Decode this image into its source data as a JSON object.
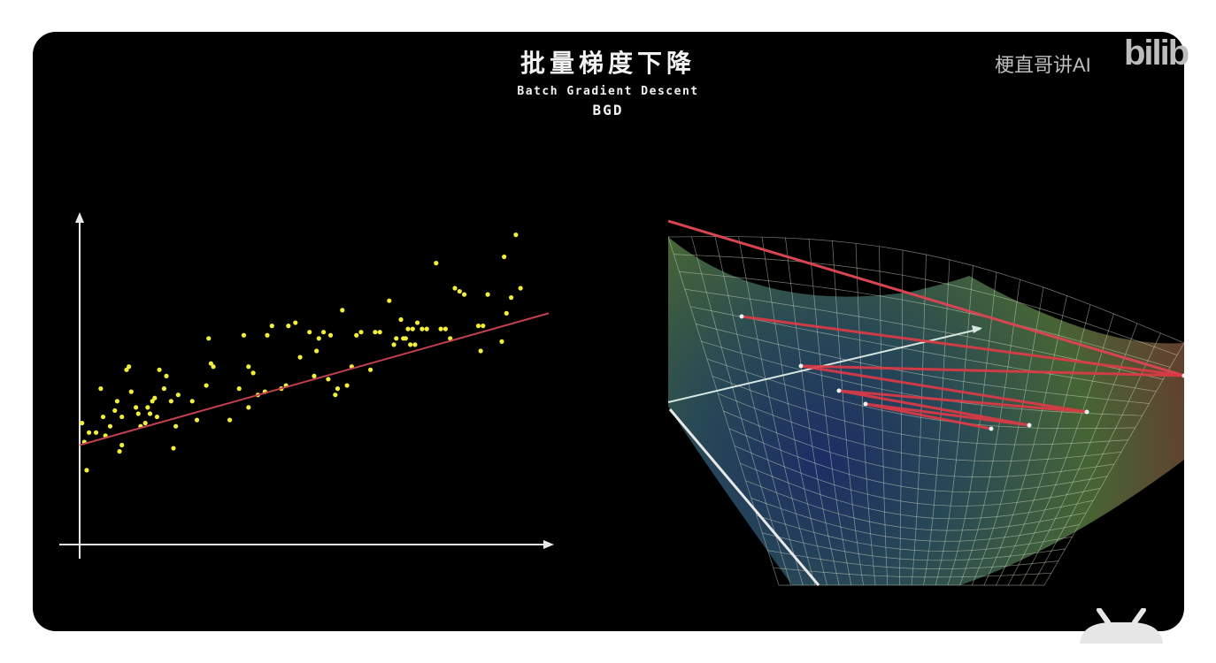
{
  "video": {
    "title": "批量梯度下降",
    "subtitle": "Batch Gradient Descent",
    "abbreviation": "BGD"
  },
  "watermark": {
    "channel": "梗直哥讲AI",
    "logo": "bilib"
  },
  "colors": {
    "background": "#000000",
    "points": "#f2ee3a",
    "fit_line": "#c2404f",
    "axes": "#e8e8e8",
    "descent_path": "#e03a45",
    "surface_grid": "#d8e0c8"
  },
  "icons": {
    "mascot": "bilibili-tv-mascot-icon"
  },
  "chart_data": {
    "type": "scatter",
    "title": "",
    "xlabel": "",
    "ylabel": "",
    "xlim": [
      0,
      100
    ],
    "ylim": [
      0,
      100
    ],
    "grid": false,
    "points": [
      [
        0.5,
        37
      ],
      [
        1,
        31
      ],
      [
        1.5,
        22
      ],
      [
        2,
        34
      ],
      [
        3.5,
        34
      ],
      [
        4.5,
        48
      ],
      [
        5,
        39
      ],
      [
        5.5,
        33
      ],
      [
        6.5,
        36
      ],
      [
        7.5,
        41
      ],
      [
        8,
        44
      ],
      [
        8.5,
        28
      ],
      [
        9,
        39
      ],
      [
        9,
        30
      ],
      [
        10,
        54
      ],
      [
        10.5,
        55
      ],
      [
        11,
        47
      ],
      [
        12,
        42
      ],
      [
        12.5,
        40
      ],
      [
        13,
        36
      ],
      [
        14,
        37
      ],
      [
        14.5,
        42
      ],
      [
        15,
        40
      ],
      [
        15.5,
        44
      ],
      [
        16,
        45
      ],
      [
        16.5,
        39
      ],
      [
        17,
        54
      ],
      [
        18,
        48
      ],
      [
        18.5,
        52
      ],
      [
        19.5,
        44
      ],
      [
        20,
        29
      ],
      [
        20.5,
        36
      ],
      [
        21,
        46
      ],
      [
        24,
        44
      ],
      [
        25,
        38
      ],
      [
        27,
        49
      ],
      [
        27.5,
        64
      ],
      [
        28,
        56
      ],
      [
        28.5,
        55
      ],
      [
        32,
        38
      ],
      [
        34,
        48
      ],
      [
        35,
        65
      ],
      [
        36,
        42
      ],
      [
        36,
        55
      ],
      [
        37,
        53
      ],
      [
        38,
        46
      ],
      [
        39.5,
        47
      ],
      [
        40,
        65
      ],
      [
        41,
        68
      ],
      [
        43,
        48
      ],
      [
        44,
        49
      ],
      [
        44.5,
        68
      ],
      [
        46,
        69
      ],
      [
        47,
        58
      ],
      [
        49,
        66
      ],
      [
        50,
        52
      ],
      [
        50.5,
        60
      ],
      [
        51,
        64
      ],
      [
        52,
        66
      ],
      [
        53,
        51
      ],
      [
        53.5,
        65
      ],
      [
        54.5,
        46
      ],
      [
        55,
        48
      ],
      [
        56,
        73
      ],
      [
        57,
        49
      ],
      [
        58,
        55
      ],
      [
        59,
        65
      ],
      [
        60,
        66
      ],
      [
        62,
        54
      ],
      [
        63,
        66
      ],
      [
        64,
        66
      ],
      [
        66,
        76
      ],
      [
        67,
        62
      ],
      [
        67.5,
        64
      ],
      [
        68.5,
        70
      ],
      [
        69,
        64
      ],
      [
        69.5,
        64
      ],
      [
        70,
        67
      ],
      [
        70.5,
        62
      ],
      [
        71,
        67
      ],
      [
        71.5,
        62
      ],
      [
        72,
        69
      ],
      [
        73,
        67
      ],
      [
        74,
        67
      ],
      [
        76,
        88
      ],
      [
        77,
        67
      ],
      [
        78,
        67
      ],
      [
        79,
        64
      ],
      [
        80,
        80
      ],
      [
        81,
        79
      ],
      [
        82,
        78
      ],
      [
        85,
        68
      ],
      [
        85.5,
        60
      ],
      [
        86,
        68
      ],
      [
        87,
        78
      ],
      [
        90,
        63
      ],
      [
        90.5,
        90
      ],
      [
        91,
        72
      ],
      [
        92,
        77
      ],
      [
        93,
        97
      ],
      [
        94,
        80
      ]
    ],
    "fit_line": {
      "x": [
        0,
        100
      ],
      "y": [
        30,
        72
      ]
    }
  }
}
